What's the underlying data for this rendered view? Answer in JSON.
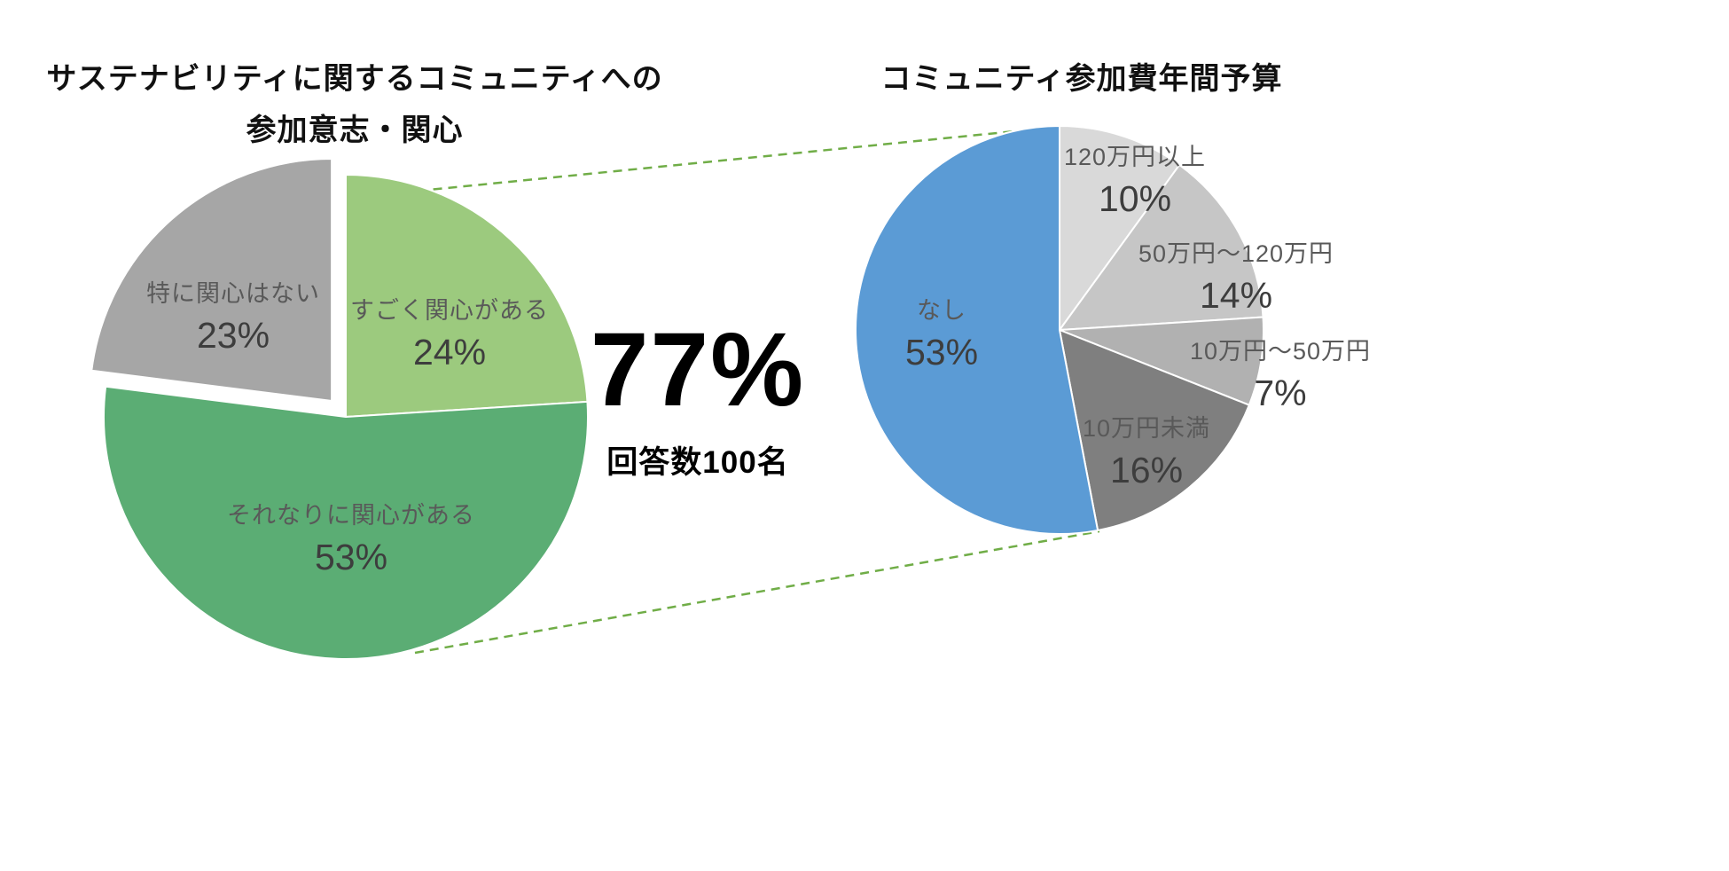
{
  "chart_data": [
    {
      "type": "pie",
      "title": "サステナビリティに関するコミュニティへの参加意志・関心",
      "title_lines": [
        "サステナビリティに関するコミュニティへの",
        "参加意志・関心"
      ],
      "unit": "%",
      "labels": [
        "すごく関心がある",
        "それなりに関心がある",
        "特に関心はない"
      ],
      "values": [
        24,
        53,
        23
      ],
      "colors": [
        "#9CCA7E",
        "#5BAD74",
        "#A6A6A6"
      ],
      "start_angle_deg": 0,
      "direction": "clockwise",
      "exploded_slice_index": 2,
      "label_position": "inside",
      "legend": "none"
    },
    {
      "type": "pie",
      "title": "コミュニティ参加費年間予算",
      "unit": "%",
      "labels": [
        "120万円以上",
        "50万円〜120万円",
        "10万円〜50万円",
        "10万円未満",
        "なし"
      ],
      "values": [
        10,
        14,
        7,
        16,
        53
      ],
      "colors": [
        "#D9D9D9",
        "#C6C6C6",
        "#B1B1B1",
        "#7F7F7F",
        "#5B9BD5"
      ],
      "start_angle_deg": 0,
      "direction": "clockwise",
      "label_position": "mixed",
      "legend": "none"
    }
  ],
  "annotation": {
    "highlight_percent": "77%",
    "respondents": "回答数100名"
  },
  "connector": {
    "color": "#70AD47",
    "style": "dashed"
  },
  "background": "#FFFFFF"
}
